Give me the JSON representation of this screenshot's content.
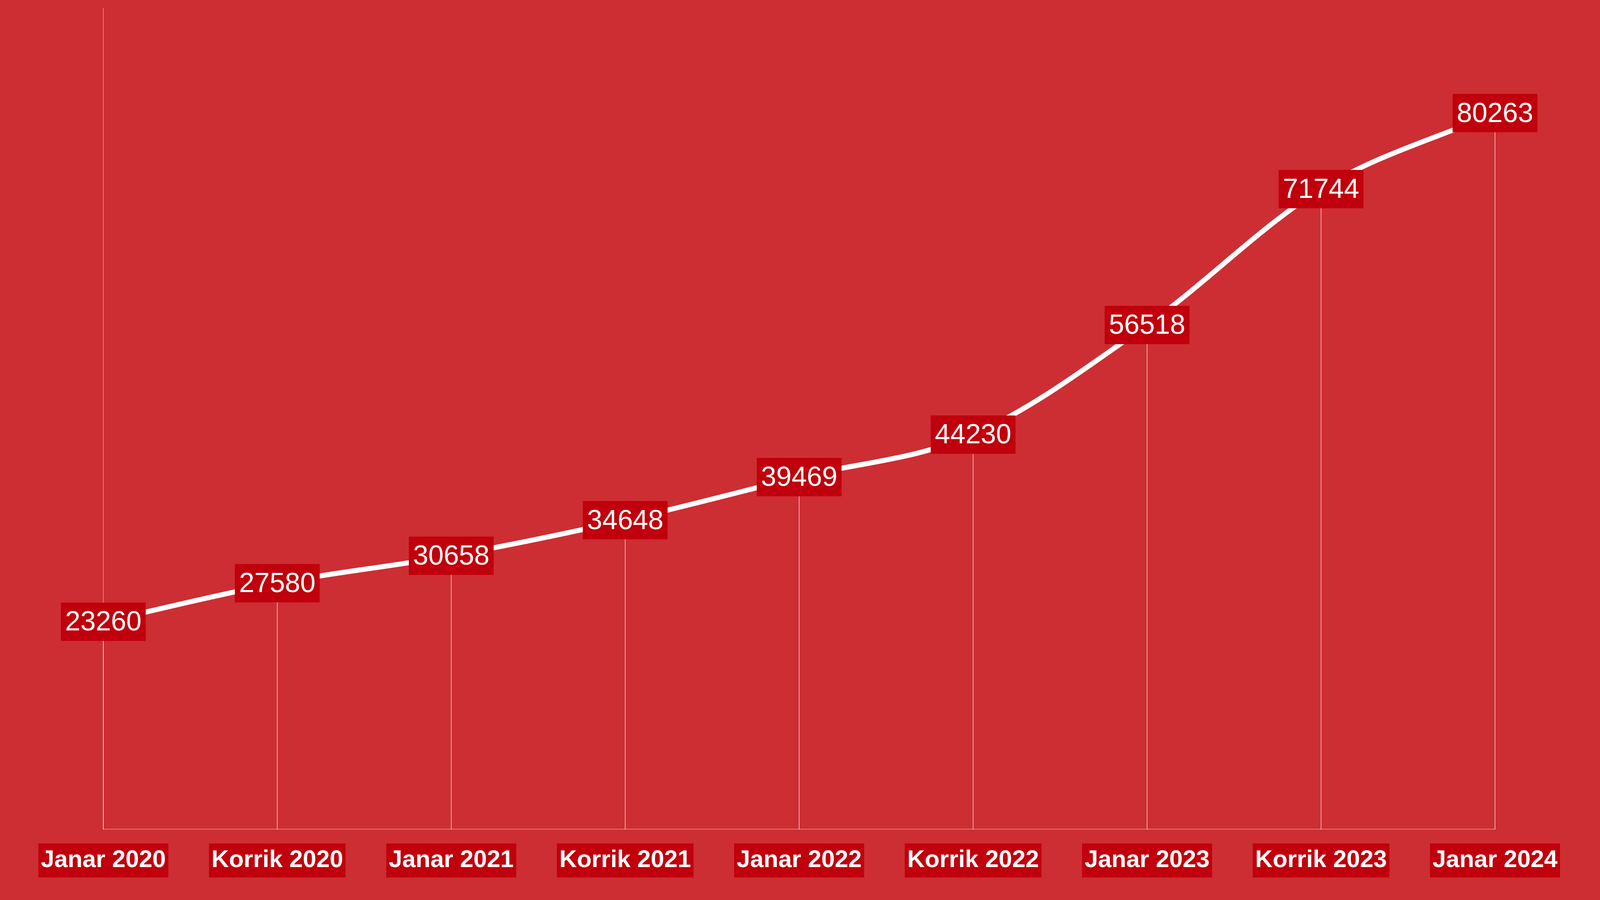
{
  "chart_data": {
    "type": "line",
    "categories": [
      "Janar 2020",
      "Korrik 2020",
      "Janar 2021",
      "Korrik 2021",
      "Janar 2022",
      "Korrik 2022",
      "Janar 2023",
      "Korrik 2023",
      "Janar 2024"
    ],
    "values": [
      23260,
      27580,
      30658,
      34648,
      39469,
      44230,
      56518,
      71744,
      80263
    ],
    "color": "#ffffff",
    "ylim": [
      0,
      92000
    ],
    "grid": false,
    "data_labels": true,
    "tick_labels": "x"
  }
}
